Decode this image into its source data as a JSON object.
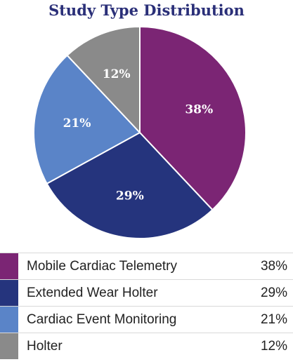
{
  "chart_data": {
    "type": "pie",
    "title": "Study Type Distribution",
    "slices": [
      {
        "label": "Mobile Cardiac Telemetry",
        "value": 38,
        "display": "38%",
        "color": "#7b2574"
      },
      {
        "label": "Extended Wear Holter",
        "value": 29,
        "display": "29%",
        "color": "#25347d"
      },
      {
        "label": "Cardiac Event Monitoring",
        "value": 21,
        "display": "21%",
        "color": "#5a84c8"
      },
      {
        "label": "Holter",
        "value": 12,
        "display": "12%",
        "color": "#8a8a8a"
      }
    ],
    "legend_position": "bottom"
  }
}
